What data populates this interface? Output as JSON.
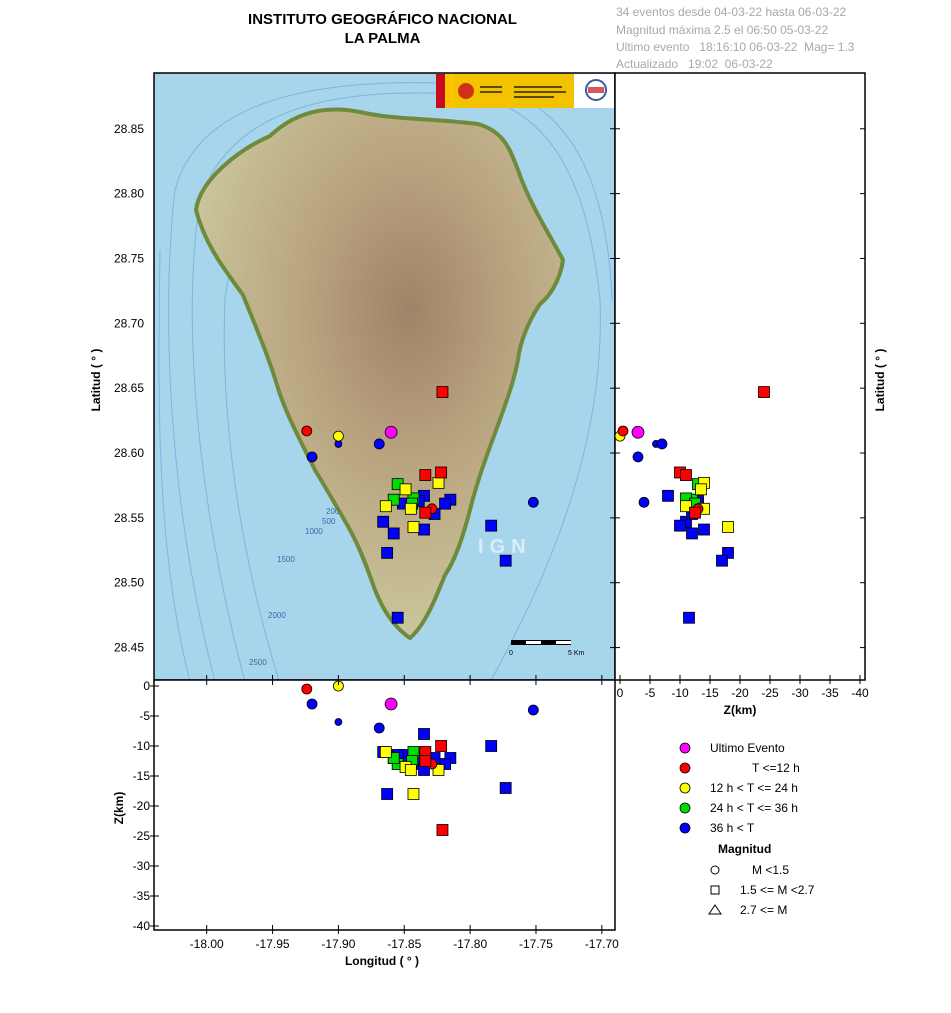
{
  "header": {
    "title": "INSTITUTO GEOGRÁFICO NACIONAL",
    "subtitle": "LA PALMA",
    "info_lines": [
      "34 eventos desde 04-03-22 hasta 06-03-22",
      "Magnitud máxima 2.5 el 06:50 05-03-22",
      "Ultimo evento   18:16:10 06-03-22  Mag= 1.3",
      "Actualizado   19:02  06-03-22"
    ]
  },
  "map": {
    "watermark": "IGN",
    "scale_label_start": "0",
    "scale_label_end": "5 Km",
    "bathymetry_labels": [
      "200",
      "500",
      "1000",
      "1500",
      "2000",
      "2500"
    ],
    "colors": {
      "sea": "#a6d5ec",
      "land_low": "#c9c49a",
      "land_high": "#a08367"
    }
  },
  "chart_data": {
    "type": "scatter",
    "xlabel": "Longitud ( ° )",
    "ylabel": "Latitud ( ° )",
    "zlabel": "Z(km)",
    "xlim": [
      -18.04,
      -17.69
    ],
    "ylim": [
      28.425,
      28.893
    ],
    "zlim": [
      0,
      -40
    ],
    "x_ticks": [
      "-18.00",
      "-17.95",
      "-17.90",
      "-17.85",
      "-17.80",
      "-17.75",
      "-17.70"
    ],
    "y_ticks": [
      "28.45",
      "28.50",
      "28.55",
      "28.60",
      "28.65",
      "28.70",
      "28.75",
      "28.80",
      "28.85"
    ],
    "z_ticks": [
      "0",
      "-5",
      "-10",
      "-15",
      "-20",
      "-25",
      "-30",
      "-35",
      "-40"
    ],
    "colors": {
      "last": "#ff00ff",
      "t12": "#ff0000",
      "t24": "#ffff00",
      "t36": "#00dd00",
      "old": "#0000ff"
    },
    "events": [
      {
        "lon": -17.86,
        "lat": 28.616,
        "depth": -3.0,
        "age": "last",
        "shape": "circle"
      },
      {
        "lon": -17.924,
        "lat": 28.617,
        "depth": -0.5,
        "age": "t12",
        "shape": "circle"
      },
      {
        "lon": -17.821,
        "lat": 28.647,
        "depth": -24.0,
        "age": "t12",
        "shape": "square"
      },
      {
        "lon": -17.822,
        "lat": 28.585,
        "depth": -10.0,
        "age": "t12",
        "shape": "square"
      },
      {
        "lon": -17.834,
        "lat": 28.583,
        "depth": -11.0,
        "age": "t12",
        "shape": "square"
      },
      {
        "lon": -17.829,
        "lat": 28.557,
        "depth": -13.0,
        "age": "t12",
        "shape": "circle"
      },
      {
        "lon": -17.834,
        "lat": 28.554,
        "depth": -12.5,
        "age": "t12",
        "shape": "square"
      },
      {
        "lon": -17.9,
        "lat": 28.613,
        "depth": 0.0,
        "age": "t24",
        "shape": "circle"
      },
      {
        "lon": -17.824,
        "lat": 28.577,
        "depth": -14.0,
        "age": "t24",
        "shape": "square"
      },
      {
        "lon": -17.849,
        "lat": 28.572,
        "depth": -13.5,
        "age": "t24",
        "shape": "square"
      },
      {
        "lon": -17.864,
        "lat": 28.559,
        "depth": -11.0,
        "age": "t24",
        "shape": "square"
      },
      {
        "lon": -17.845,
        "lat": 28.557,
        "depth": -14.0,
        "age": "t24",
        "shape": "square"
      },
      {
        "lon": -17.843,
        "lat": 28.543,
        "depth": -18.0,
        "age": "t24",
        "shape": "square"
      },
      {
        "lon": -17.855,
        "lat": 28.576,
        "depth": -13.0,
        "age": "t36",
        "shape": "square"
      },
      {
        "lon": -17.858,
        "lat": 28.564,
        "depth": -12.0,
        "age": "t36",
        "shape": "square"
      },
      {
        "lon": -17.843,
        "lat": 28.565,
        "depth": -11.0,
        "age": "t36",
        "shape": "square"
      },
      {
        "lon": -17.844,
        "lat": 28.561,
        "depth": -12.5,
        "age": "t36",
        "shape": "square"
      },
      {
        "lon": -17.92,
        "lat": 28.597,
        "depth": -3.0,
        "age": "old",
        "shape": "circle"
      },
      {
        "lon": -17.9,
        "lat": 28.607,
        "depth": -6.0,
        "age": "old",
        "shape": "circle"
      },
      {
        "lon": -17.869,
        "lat": 28.607,
        "depth": -7.0,
        "age": "old",
        "shape": "circle"
      },
      {
        "lon": -17.752,
        "lat": 28.562,
        "depth": -4.0,
        "age": "old",
        "shape": "circle"
      },
      {
        "lon": -17.835,
        "lat": 28.567,
        "depth": -8.0,
        "age": "old",
        "shape": "square"
      },
      {
        "lon": -17.851,
        "lat": 28.561,
        "depth": -11.5,
        "age": "old",
        "shape": "square"
      },
      {
        "lon": -17.839,
        "lat": 28.563,
        "depth": -13.0,
        "age": "old",
        "shape": "square"
      },
      {
        "lon": -17.815,
        "lat": 28.564,
        "depth": -12.0,
        "age": "old",
        "shape": "square"
      },
      {
        "lon": -17.819,
        "lat": 28.561,
        "depth": -13.0,
        "age": "old",
        "shape": "square"
      },
      {
        "lon": -17.866,
        "lat": 28.547,
        "depth": -11.0,
        "age": "old",
        "shape": "square"
      },
      {
        "lon": -17.784,
        "lat": 28.544,
        "depth": -10.0,
        "age": "old",
        "shape": "square"
      },
      {
        "lon": -17.835,
        "lat": 28.541,
        "depth": -14.0,
        "age": "old",
        "shape": "square"
      },
      {
        "lon": -17.858,
        "lat": 28.538,
        "depth": -12.0,
        "age": "old",
        "shape": "square"
      },
      {
        "lon": -17.863,
        "lat": 28.523,
        "depth": -18.0,
        "age": "old",
        "shape": "square"
      },
      {
        "lon": -17.773,
        "lat": 28.517,
        "depth": -17.0,
        "age": "old",
        "shape": "square"
      },
      {
        "lon": -17.855,
        "lat": 28.473,
        "depth": -11.5,
        "age": "old",
        "shape": "square"
      },
      {
        "lon": -17.827,
        "lat": 28.553,
        "depth": -12.0,
        "age": "old",
        "shape": "square"
      }
    ],
    "legend": {
      "items": [
        {
          "age": "last",
          "label": "Ultimo Evento"
        },
        {
          "age": "t12",
          "label": "T <=12 h"
        },
        {
          "age": "t24",
          "label": "12 h  < T <= 24 h"
        },
        {
          "age": "t36",
          "label": "24 h  < T <= 36 h"
        },
        {
          "age": "old",
          "label": "36 h <  T"
        }
      ],
      "magnitude_title": "Magnitud",
      "magnitude_items": [
        {
          "shape": "circle",
          "label": "M <1.5"
        },
        {
          "shape": "square",
          "label": "1.5 <= M <2.7"
        },
        {
          "shape": "triangle",
          "label": "2.7 <= M"
        }
      ]
    }
  }
}
